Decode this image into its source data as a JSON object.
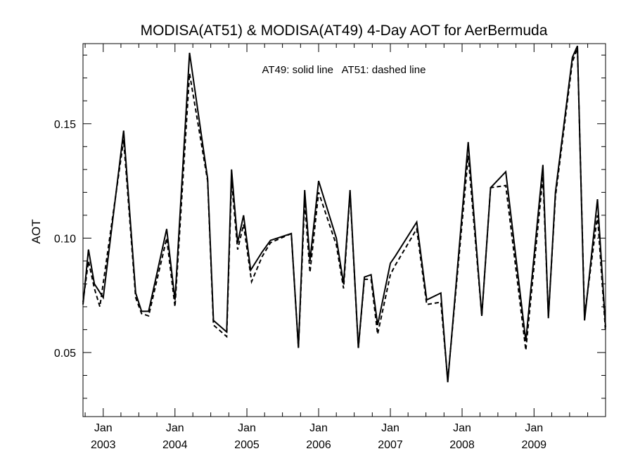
{
  "chart_data": {
    "type": "line",
    "title": "MODISA(AT51) & MODISA(AT49) 4-Day AOT for AerBermuda",
    "annotation": "AT49: solid line   AT51: dashed line",
    "xlabel": "",
    "ylabel": "AOT",
    "ylim": [
      0.022,
      0.185
    ],
    "xlim": [
      "2002-09-20",
      "2009-12-31"
    ],
    "grid": false,
    "y_ticks": [
      {
        "value": 0.05,
        "label": "0.05"
      },
      {
        "value": 0.1,
        "label": "0.10"
      },
      {
        "value": 0.15,
        "label": "0.15"
      }
    ],
    "x_ticks": [
      {
        "date": "2003-01-01",
        "month": "Jan",
        "year": "2003"
      },
      {
        "date": "2004-01-01",
        "month": "Jan",
        "year": "2004"
      },
      {
        "date": "2005-01-01",
        "month": "Jan",
        "year": "2005"
      },
      {
        "date": "2006-01-01",
        "month": "Jan",
        "year": "2006"
      },
      {
        "date": "2007-01-01",
        "month": "Jan",
        "year": "2007"
      },
      {
        "date": "2008-01-01",
        "month": "Jan",
        "year": "2008"
      },
      {
        "date": "2009-01-01",
        "month": "Jan",
        "year": "2009"
      }
    ],
    "series": [
      {
        "style": "solid",
        "points": [
          [
            "2002-09-20",
            0.071
          ],
          [
            "2002-10-18",
            0.095
          ],
          [
            "2002-11-17",
            0.08
          ],
          [
            "2003-01-01",
            0.074
          ],
          [
            "2003-04-15",
            0.147
          ],
          [
            "2003-06-15",
            0.076
          ],
          [
            "2003-07-15",
            0.068
          ],
          [
            "2003-08-20",
            0.068
          ],
          [
            "2003-11-20",
            0.104
          ],
          [
            "2004-01-01",
            0.073
          ],
          [
            "2004-03-15",
            0.181
          ],
          [
            "2004-06-15",
            0.126
          ],
          [
            "2004-07-15",
            0.064
          ],
          [
            "2004-09-20",
            0.059
          ],
          [
            "2004-10-15",
            0.13
          ],
          [
            "2004-11-15",
            0.098
          ],
          [
            "2004-12-15",
            0.11
          ],
          [
            "2005-01-20",
            0.086
          ],
          [
            "2005-03-20",
            0.094
          ],
          [
            "2005-05-01",
            0.099
          ],
          [
            "2005-08-15",
            0.102
          ],
          [
            "2005-09-20",
            0.052
          ],
          [
            "2005-10-22",
            0.121
          ],
          [
            "2005-11-18",
            0.09
          ],
          [
            "2006-01-01",
            0.125
          ],
          [
            "2006-04-01",
            0.1
          ],
          [
            "2006-05-08",
            0.08
          ],
          [
            "2006-06-10",
            0.121
          ],
          [
            "2006-07-22",
            0.052
          ],
          [
            "2006-08-22",
            0.083
          ],
          [
            "2006-09-25",
            0.084
          ],
          [
            "2006-10-28",
            0.062
          ],
          [
            "2007-01-01",
            0.089
          ],
          [
            "2007-01-25",
            0.092
          ],
          [
            "2007-05-15",
            0.107
          ],
          [
            "2007-07-05",
            0.073
          ],
          [
            "2007-09-15",
            0.076
          ],
          [
            "2007-10-20",
            0.037
          ],
          [
            "2008-02-01",
            0.142
          ],
          [
            "2008-04-10",
            0.066
          ],
          [
            "2008-05-25",
            0.122
          ],
          [
            "2008-08-10",
            0.129
          ],
          [
            "2008-11-20",
            0.055
          ],
          [
            "2009-02-15",
            0.132
          ],
          [
            "2009-03-15",
            0.065
          ],
          [
            "2009-04-20",
            0.12
          ],
          [
            "2009-07-15",
            0.179
          ],
          [
            "2009-08-10",
            0.184
          ],
          [
            "2009-09-15",
            0.064
          ],
          [
            "2009-11-20",
            0.117
          ],
          [
            "2009-12-31",
            0.061
          ]
        ]
      },
      {
        "style": "dashed",
        "points": [
          [
            "2002-09-20",
            0.072
          ],
          [
            "2002-10-18",
            0.09
          ],
          [
            "2002-11-17",
            0.078
          ],
          [
            "2002-12-15",
            0.07
          ],
          [
            "2003-04-15",
            0.143
          ],
          [
            "2003-06-15",
            0.074
          ],
          [
            "2003-07-15",
            0.067
          ],
          [
            "2003-08-20",
            0.066
          ],
          [
            "2003-11-20",
            0.1
          ],
          [
            "2004-01-01",
            0.07
          ],
          [
            "2004-03-15",
            0.172
          ],
          [
            "2004-06-15",
            0.125
          ],
          [
            "2004-07-15",
            0.062
          ],
          [
            "2004-09-20",
            0.057
          ],
          [
            "2004-10-15",
            0.125
          ],
          [
            "2004-11-15",
            0.095
          ],
          [
            "2004-12-15",
            0.106
          ],
          [
            "2005-01-25",
            0.081
          ],
          [
            "2005-03-20",
            0.092
          ],
          [
            "2005-05-01",
            0.098
          ],
          [
            "2005-08-15",
            0.102
          ],
          [
            "2005-09-20",
            0.052
          ],
          [
            "2005-10-22",
            0.116
          ],
          [
            "2005-11-18",
            0.085
          ],
          [
            "2006-01-01",
            0.12
          ],
          [
            "2006-04-01",
            0.097
          ],
          [
            "2006-05-08",
            0.078
          ],
          [
            "2006-06-10",
            0.12
          ],
          [
            "2006-07-22",
            0.052
          ],
          [
            "2006-08-22",
            0.082
          ],
          [
            "2006-09-25",
            0.082
          ],
          [
            "2006-10-28",
            0.058
          ],
          [
            "2007-01-01",
            0.084
          ],
          [
            "2007-01-25",
            0.088
          ],
          [
            "2007-05-15",
            0.104
          ],
          [
            "2007-07-05",
            0.071
          ],
          [
            "2007-09-15",
            0.072
          ],
          [
            "2007-10-20",
            0.038
          ],
          [
            "2008-02-01",
            0.136
          ],
          [
            "2008-04-10",
            0.066
          ],
          [
            "2008-05-25",
            0.122
          ],
          [
            "2008-08-10",
            0.123
          ],
          [
            "2008-11-20",
            0.051
          ],
          [
            "2009-02-15",
            0.127
          ],
          [
            "2009-03-15",
            0.066
          ],
          [
            "2009-04-20",
            0.118
          ],
          [
            "2009-07-15",
            0.177
          ],
          [
            "2009-08-10",
            0.183
          ],
          [
            "2009-09-15",
            0.066
          ],
          [
            "2009-11-20",
            0.11
          ],
          [
            "2009-12-31",
            0.059
          ]
        ]
      }
    ]
  }
}
